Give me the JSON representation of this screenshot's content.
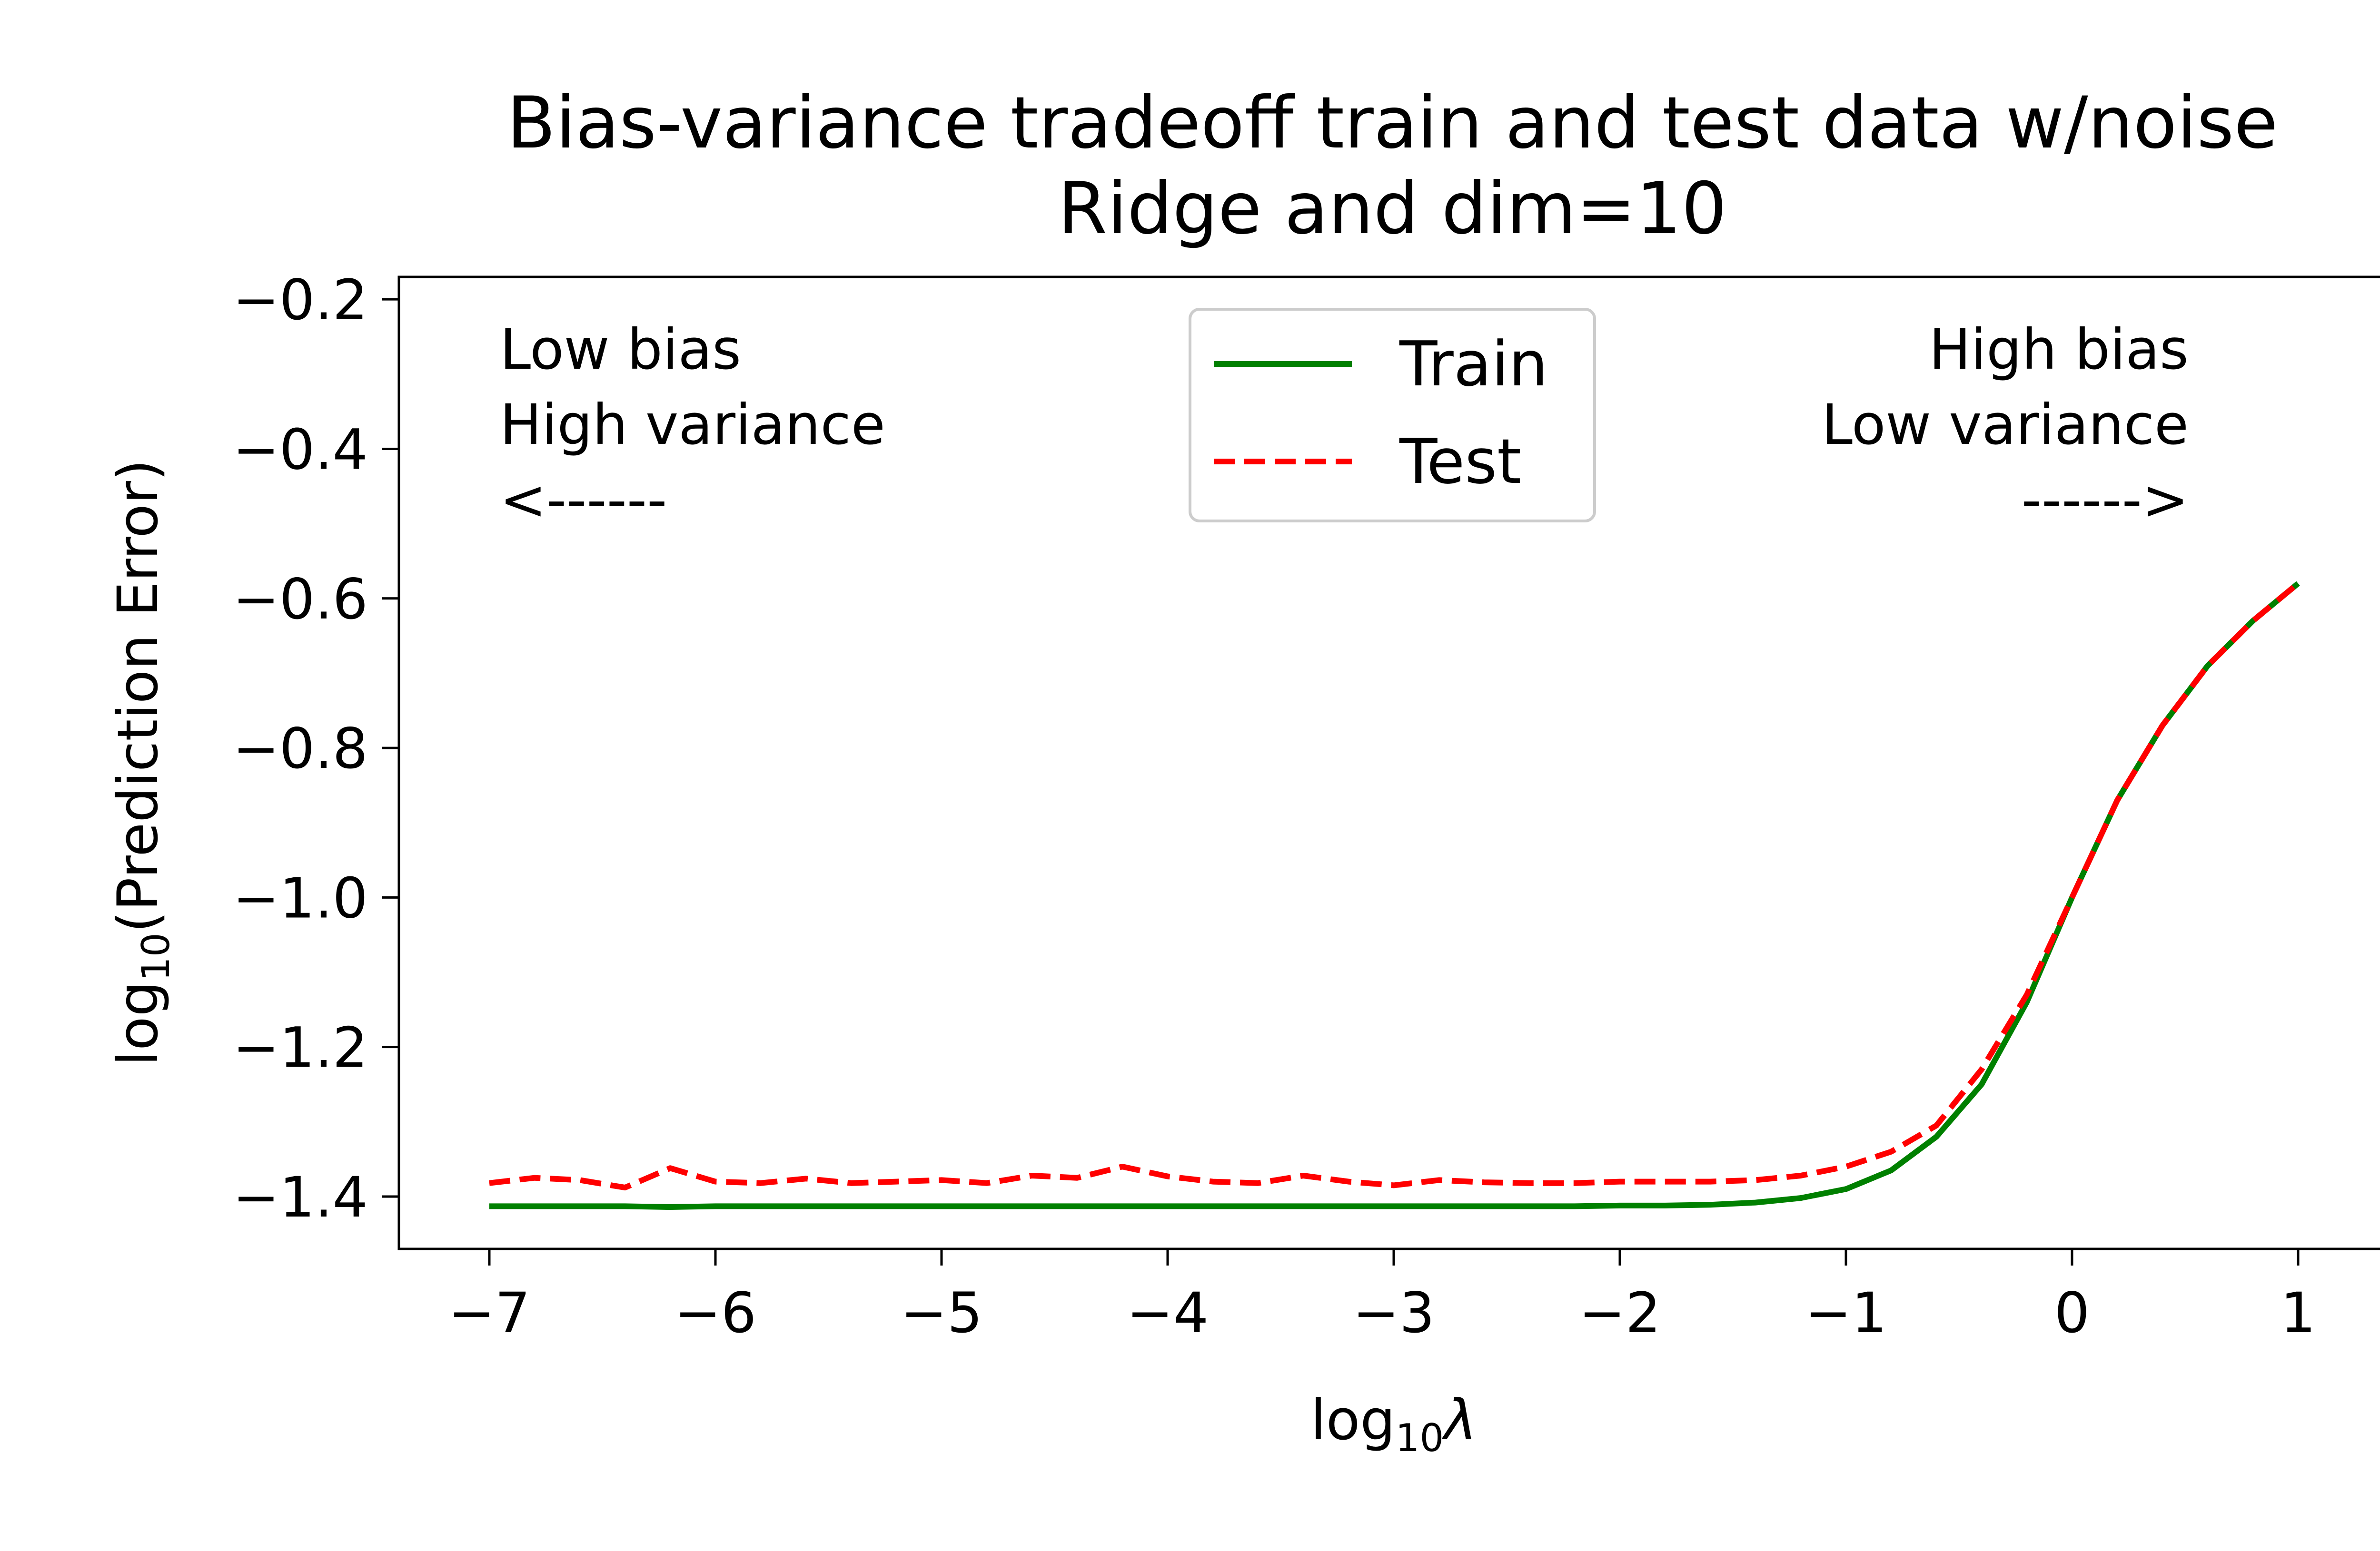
{
  "chart_data": {
    "type": "line",
    "title": "Bias-variance tradeoff train and test data w/noise",
    "subtitle": "Ridge and dim=10",
    "xlabel": {
      "prefix": "log",
      "subscript": "10",
      "suffix": "λ"
    },
    "ylabel": {
      "prefix": "log",
      "subscript": "10",
      "suffix": "(Prediction Error)"
    },
    "xlim": [
      -7.4,
      1.4
    ],
    "ylim": [
      -1.47,
      -0.17
    ],
    "xticks": [
      -7,
      -6,
      -5,
      -4,
      -3,
      -2,
      -1,
      0,
      1
    ],
    "xtick_labels": [
      "−7",
      "−6",
      "−5",
      "−4",
      "−3",
      "−2",
      "−1",
      "0",
      "1"
    ],
    "yticks": [
      -0.2,
      -0.4,
      -0.6,
      -0.8,
      -1.0,
      -1.2,
      -1.4
    ],
    "ytick_labels": [
      "−0.2",
      "−0.4",
      "−0.6",
      "−0.8",
      "−1.0",
      "−1.2",
      "−1.4"
    ],
    "grid": false,
    "legend": "upper center",
    "annotations": {
      "left": [
        "Low bias",
        "High variance",
        "<------"
      ],
      "right": [
        "High bias",
        "Low variance",
        "------>"
      ]
    },
    "x": [
      -7.0,
      -6.8,
      -6.6,
      -6.4,
      -6.2,
      -6.0,
      -5.8,
      -5.6,
      -5.4,
      -5.2,
      -5.0,
      -4.8,
      -4.6,
      -4.4,
      -4.2,
      -4.0,
      -3.8,
      -3.6,
      -3.4,
      -3.2,
      -3.0,
      -2.8,
      -2.6,
      -2.4,
      -2.2,
      -2.0,
      -1.8,
      -1.6,
      -1.4,
      -1.2,
      -1.0,
      -0.8,
      -0.6,
      -0.4,
      -0.2,
      0.0,
      0.2,
      0.4,
      0.6,
      0.8,
      1.0
    ],
    "series": [
      {
        "name": "Train",
        "color": "#008000",
        "style": "solid",
        "values": [
          -1.413,
          -1.413,
          -1.413,
          -1.413,
          -1.414,
          -1.413,
          -1.413,
          -1.413,
          -1.413,
          -1.413,
          -1.413,
          -1.413,
          -1.413,
          -1.413,
          -1.413,
          -1.413,
          -1.413,
          -1.413,
          -1.413,
          -1.413,
          -1.413,
          -1.413,
          -1.413,
          -1.413,
          -1.413,
          -1.412,
          -1.412,
          -1.411,
          -1.408,
          -1.402,
          -1.39,
          -1.365,
          -1.32,
          -1.25,
          -1.14,
          -1.0,
          -0.87,
          -0.77,
          -0.69,
          -0.63,
          -0.58
        ]
      },
      {
        "name": "Test",
        "color": "#ff0000",
        "style": "dashed",
        "values": [
          -1.382,
          -1.375,
          -1.378,
          -1.388,
          -1.362,
          -1.38,
          -1.382,
          -1.376,
          -1.382,
          -1.38,
          -1.378,
          -1.382,
          -1.372,
          -1.375,
          -1.36,
          -1.373,
          -1.38,
          -1.382,
          -1.372,
          -1.38,
          -1.385,
          -1.378,
          -1.381,
          -1.382,
          -1.382,
          -1.38,
          -1.38,
          -1.38,
          -1.378,
          -1.372,
          -1.36,
          -1.34,
          -1.305,
          -1.23,
          -1.13,
          -1.0,
          -0.87,
          -0.77,
          -0.69,
          -0.63,
          -0.58
        ]
      }
    ]
  }
}
